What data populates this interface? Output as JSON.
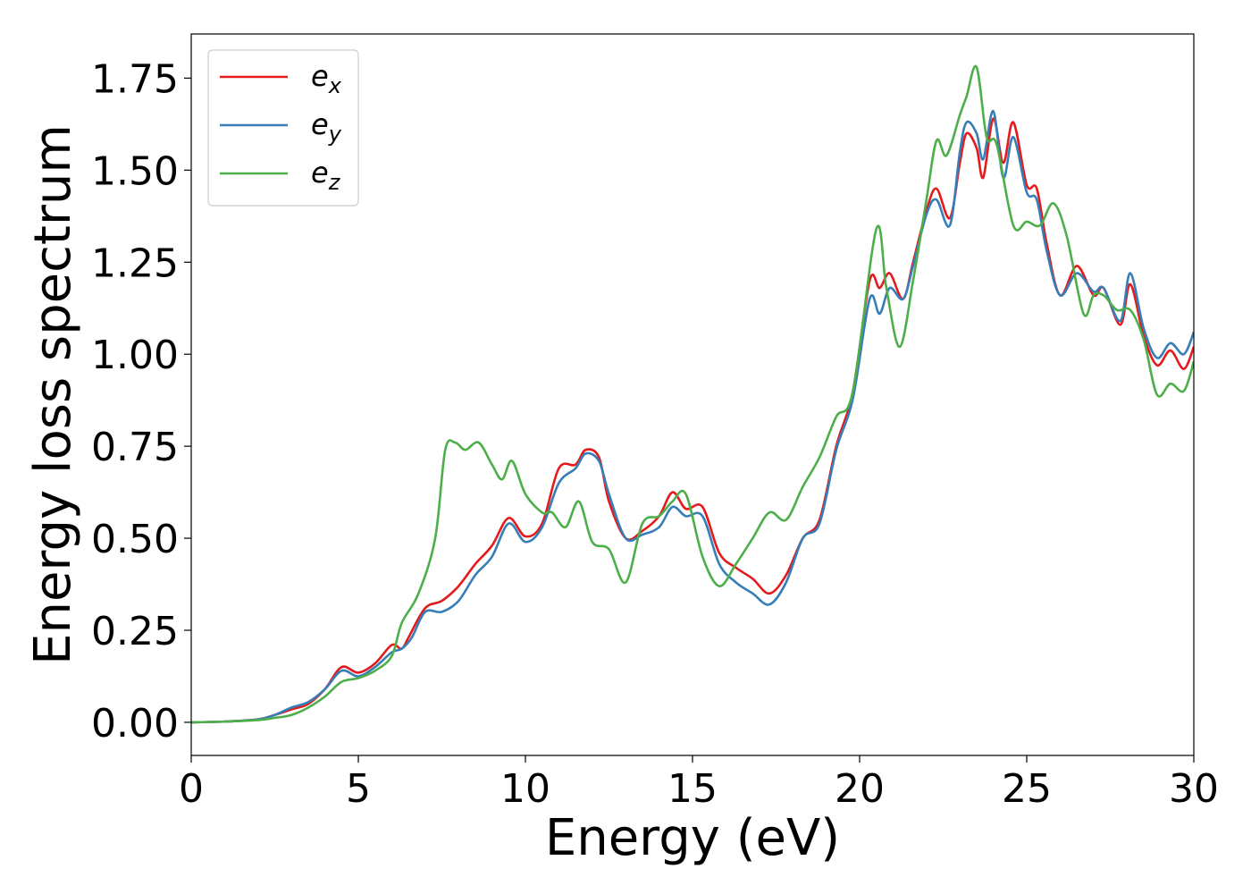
{
  "chart_data": {
    "type": "line",
    "title": "",
    "xlabel": "Energy (eV)",
    "ylabel": "Energy loss spectrum",
    "xlim": [
      0,
      30
    ],
    "ylim": [
      -0.09,
      1.87
    ],
    "xticks": [
      0,
      5,
      10,
      15,
      20,
      25,
      30
    ],
    "xtick_labels": [
      "0",
      "5",
      "10",
      "15",
      "20",
      "25",
      "30"
    ],
    "yticks": [
      0.0,
      0.25,
      0.5,
      0.75,
      1.0,
      1.25,
      1.5,
      1.75
    ],
    "ytick_labels": [
      "0.00",
      "0.25",
      "0.50",
      "0.75",
      "1.00",
      "1.25",
      "1.50",
      "1.75"
    ],
    "grid": false,
    "legend_position": "top-left",
    "series": [
      {
        "name": "e_x",
        "legend_base": "e",
        "legend_sub": "x",
        "color": "#e41a1c",
        "points": [
          [
            0,
            0
          ],
          [
            1,
            0.002
          ],
          [
            2,
            0.008
          ],
          [
            2.5,
            0.02
          ],
          [
            3,
            0.035
          ],
          [
            3.5,
            0.05
          ],
          [
            4,
            0.09
          ],
          [
            4.5,
            0.15
          ],
          [
            5,
            0.135
          ],
          [
            5.5,
            0.16
          ],
          [
            6,
            0.21
          ],
          [
            6.3,
            0.2
          ],
          [
            6.5,
            0.23
          ],
          [
            7,
            0.31
          ],
          [
            7.5,
            0.33
          ],
          [
            8,
            0.37
          ],
          [
            8.5,
            0.43
          ],
          [
            9,
            0.48
          ],
          [
            9.5,
            0.555
          ],
          [
            10,
            0.505
          ],
          [
            10.5,
            0.54
          ],
          [
            11,
            0.69
          ],
          [
            11.5,
            0.7
          ],
          [
            11.8,
            0.74
          ],
          [
            12.2,
            0.72
          ],
          [
            12.5,
            0.6
          ],
          [
            13,
            0.5
          ],
          [
            13.5,
            0.52
          ],
          [
            14,
            0.56
          ],
          [
            14.4,
            0.625
          ],
          [
            14.8,
            0.58
          ],
          [
            15.3,
            0.585
          ],
          [
            15.8,
            0.46
          ],
          [
            16.3,
            0.42
          ],
          [
            16.8,
            0.39
          ],
          [
            17.3,
            0.35
          ],
          [
            17.8,
            0.4
          ],
          [
            18.3,
            0.5
          ],
          [
            18.8,
            0.55
          ],
          [
            19.3,
            0.75
          ],
          [
            19.8,
            0.9
          ],
          [
            20.3,
            1.2
          ],
          [
            20.6,
            1.18
          ],
          [
            20.9,
            1.22
          ],
          [
            21.3,
            1.15
          ],
          [
            21.6,
            1.25
          ],
          [
            22,
            1.39
          ],
          [
            22.3,
            1.45
          ],
          [
            22.7,
            1.37
          ],
          [
            23,
            1.52
          ],
          [
            23.2,
            1.6
          ],
          [
            23.5,
            1.56
          ],
          [
            23.7,
            1.48
          ],
          [
            24,
            1.64
          ],
          [
            24.3,
            1.52
          ],
          [
            24.6,
            1.63
          ],
          [
            25,
            1.46
          ],
          [
            25.3,
            1.45
          ],
          [
            25.6,
            1.3
          ],
          [
            26,
            1.16
          ],
          [
            26.5,
            1.24
          ],
          [
            27,
            1.16
          ],
          [
            27.3,
            1.18
          ],
          [
            27.8,
            1.08
          ],
          [
            28.1,
            1.19
          ],
          [
            28.5,
            1.05
          ],
          [
            28.9,
            0.97
          ],
          [
            29.3,
            1.01
          ],
          [
            29.7,
            0.96
          ],
          [
            30,
            1.02
          ]
        ]
      },
      {
        "name": "e_y",
        "legend_base": "e",
        "legend_sub": "y",
        "color": "#377eb8",
        "points": [
          [
            0,
            0
          ],
          [
            1,
            0.002
          ],
          [
            2,
            0.008
          ],
          [
            2.5,
            0.02
          ],
          [
            3,
            0.04
          ],
          [
            3.5,
            0.055
          ],
          [
            4,
            0.09
          ],
          [
            4.5,
            0.14
          ],
          [
            5,
            0.125
          ],
          [
            5.5,
            0.15
          ],
          [
            6,
            0.19
          ],
          [
            6.3,
            0.2
          ],
          [
            6.6,
            0.23
          ],
          [
            7,
            0.3
          ],
          [
            7.5,
            0.3
          ],
          [
            8,
            0.33
          ],
          [
            8.5,
            0.4
          ],
          [
            9,
            0.45
          ],
          [
            9.5,
            0.54
          ],
          [
            10,
            0.49
          ],
          [
            10.5,
            0.53
          ],
          [
            11,
            0.65
          ],
          [
            11.5,
            0.69
          ],
          [
            11.8,
            0.73
          ],
          [
            12.2,
            0.71
          ],
          [
            12.5,
            0.62
          ],
          [
            13,
            0.5
          ],
          [
            13.5,
            0.51
          ],
          [
            14,
            0.53
          ],
          [
            14.4,
            0.585
          ],
          [
            14.8,
            0.56
          ],
          [
            15.3,
            0.56
          ],
          [
            15.8,
            0.43
          ],
          [
            16.3,
            0.38
          ],
          [
            16.8,
            0.35
          ],
          [
            17.3,
            0.32
          ],
          [
            17.8,
            0.38
          ],
          [
            18.3,
            0.5
          ],
          [
            18.8,
            0.54
          ],
          [
            19.3,
            0.74
          ],
          [
            19.8,
            0.88
          ],
          [
            20.3,
            1.15
          ],
          [
            20.6,
            1.11
          ],
          [
            20.9,
            1.18
          ],
          [
            21.3,
            1.15
          ],
          [
            21.6,
            1.24
          ],
          [
            22,
            1.38
          ],
          [
            22.3,
            1.42
          ],
          [
            22.7,
            1.35
          ],
          [
            23,
            1.55
          ],
          [
            23.2,
            1.63
          ],
          [
            23.5,
            1.6
          ],
          [
            23.7,
            1.53
          ],
          [
            24,
            1.66
          ],
          [
            24.3,
            1.48
          ],
          [
            24.6,
            1.59
          ],
          [
            25,
            1.44
          ],
          [
            25.3,
            1.42
          ],
          [
            25.6,
            1.28
          ],
          [
            26,
            1.16
          ],
          [
            26.5,
            1.22
          ],
          [
            27,
            1.17
          ],
          [
            27.3,
            1.18
          ],
          [
            27.8,
            1.09
          ],
          [
            28.1,
            1.22
          ],
          [
            28.5,
            1.07
          ],
          [
            28.9,
            0.99
          ],
          [
            29.3,
            1.03
          ],
          [
            29.7,
            1.0
          ],
          [
            30,
            1.06
          ]
        ]
      },
      {
        "name": "e_z",
        "legend_base": "e",
        "legend_sub": "z",
        "color": "#4daf4a",
        "points": [
          [
            0,
            0
          ],
          [
            1,
            0.002
          ],
          [
            2,
            0.006
          ],
          [
            2.5,
            0.012
          ],
          [
            3,
            0.02
          ],
          [
            3.5,
            0.04
          ],
          [
            4,
            0.07
          ],
          [
            4.5,
            0.11
          ],
          [
            5,
            0.12
          ],
          [
            5.5,
            0.14
          ],
          [
            6,
            0.18
          ],
          [
            6.3,
            0.27
          ],
          [
            6.8,
            0.35
          ],
          [
            7.3,
            0.5
          ],
          [
            7.6,
            0.74
          ],
          [
            7.9,
            0.76
          ],
          [
            8.2,
            0.74
          ],
          [
            8.6,
            0.76
          ],
          [
            9,
            0.7
          ],
          [
            9.3,
            0.66
          ],
          [
            9.6,
            0.71
          ],
          [
            10,
            0.62
          ],
          [
            10.5,
            0.57
          ],
          [
            10.8,
            0.57
          ],
          [
            11.2,
            0.53
          ],
          [
            11.6,
            0.6
          ],
          [
            12,
            0.49
          ],
          [
            12.5,
            0.47
          ],
          [
            13,
            0.38
          ],
          [
            13.5,
            0.54
          ],
          [
            14,
            0.56
          ],
          [
            14.4,
            0.6
          ],
          [
            14.8,
            0.62
          ],
          [
            15.3,
            0.45
          ],
          [
            15.8,
            0.37
          ],
          [
            16.3,
            0.43
          ],
          [
            16.8,
            0.5
          ],
          [
            17.3,
            0.57
          ],
          [
            17.8,
            0.55
          ],
          [
            18.3,
            0.64
          ],
          [
            18.8,
            0.72
          ],
          [
            19.3,
            0.83
          ],
          [
            19.8,
            0.9
          ],
          [
            20.5,
            1.34
          ],
          [
            20.8,
            1.18
          ],
          [
            21.2,
            1.02
          ],
          [
            21.6,
            1.2
          ],
          [
            22,
            1.42
          ],
          [
            22.3,
            1.58
          ],
          [
            22.6,
            1.54
          ],
          [
            23,
            1.65
          ],
          [
            23.2,
            1.7
          ],
          [
            23.5,
            1.78
          ],
          [
            23.8,
            1.59
          ],
          [
            24.1,
            1.57
          ],
          [
            24.6,
            1.35
          ],
          [
            25,
            1.36
          ],
          [
            25.4,
            1.35
          ],
          [
            25.8,
            1.41
          ],
          [
            26.2,
            1.32
          ],
          [
            26.7,
            1.11
          ],
          [
            27,
            1.16
          ],
          [
            27.3,
            1.16
          ],
          [
            27.7,
            1.12
          ],
          [
            28.1,
            1.12
          ],
          [
            28.5,
            1.04
          ],
          [
            28.9,
            0.89
          ],
          [
            29.3,
            0.92
          ],
          [
            29.7,
            0.9
          ],
          [
            30,
            0.98
          ]
        ]
      }
    ]
  }
}
